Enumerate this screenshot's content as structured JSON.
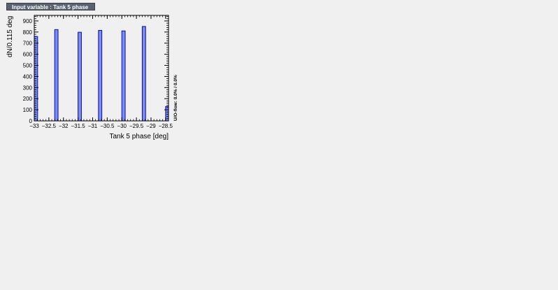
{
  "title": "Input variable : Tank 5 phase",
  "overflow_note": "U/O-flow: 0.0% / 0.0%",
  "chart_data": {
    "type": "bar",
    "xlabel": "Tank 5 phase  [deg]",
    "ylabel": "dN/0.115 deg",
    "xlim": [
      -33.0,
      -28.4
    ],
    "ylim": [
      0,
      950
    ],
    "bin_width": 0.115,
    "x_ticks": [
      -33,
      -32.5,
      -32,
      -31.5,
      -31,
      -30.5,
      -30,
      -29.5,
      -29,
      -28.5
    ],
    "x_tick_labels": [
      "−33",
      "−32.5",
      "−32",
      "−31.5",
      "−31",
      "−30.5",
      "−30",
      "−29.5",
      "−29",
      "−28.5"
    ],
    "y_ticks": [
      0,
      100,
      200,
      300,
      400,
      500,
      600,
      700,
      800,
      900
    ],
    "y_tick_labels": [
      "0",
      "100",
      "200",
      "300",
      "400",
      "500",
      "600",
      "700",
      "800",
      "900"
    ],
    "bins": [
      {
        "x": -33.0,
        "value": 760
      },
      {
        "x": -32.3,
        "value": 822
      },
      {
        "x": -31.5,
        "value": 798
      },
      {
        "x": -30.8,
        "value": 815
      },
      {
        "x": -30.0,
        "value": 810
      },
      {
        "x": -29.3,
        "value": 850
      },
      {
        "x": -28.5,
        "value": 130
      }
    ],
    "fill_color": "#7a8ef0",
    "edge_color": "#0a0ab0",
    "grid": false
  }
}
